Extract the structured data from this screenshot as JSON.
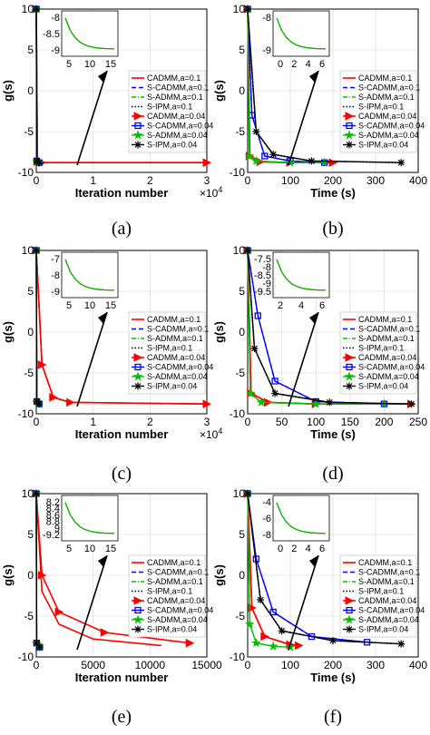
{
  "panels": [
    {
      "letter": "(a)",
      "ylabel": "g(s)",
      "xlabel": "Iteration number",
      "xmax": 3,
      "xticks": [
        "0",
        "1",
        "2",
        "3"
      ],
      "xexp": "×10",
      "xexp_pow": "4",
      "yticks": [
        "-10",
        "-5",
        "0",
        "5",
        "10"
      ],
      "inset": {
        "xticks": [
          "5",
          "10",
          "15"
        ],
        "yticks": [
          "-8",
          "-8.5",
          "-9"
        ]
      },
      "legend": [
        "CADMM,a=0.1",
        "S-CADMM,a=0.1",
        "S-ADMM,a=0.1",
        "S-IPM,a=0.1",
        "CADMM,a=0.04",
        "S-CADMM,a=0.04",
        "S-ADMM,a=0.04",
        "S-IPM,a=0.04"
      ]
    },
    {
      "letter": "(b)",
      "ylabel": "g(s)",
      "xlabel": "Time (s)",
      "xmax": 400,
      "xticks": [
        "0",
        "100",
        "200",
        "300",
        "400"
      ],
      "xexp": "",
      "xexp_pow": "",
      "yticks": [
        "-10",
        "-5",
        "0",
        "5",
        "10"
      ],
      "inset": {
        "xticks": [
          "0",
          "2",
          "4",
          "6"
        ],
        "yticks": [
          "-8",
          "-9"
        ]
      },
      "legend": [
        "CADMM,a=0.1",
        "S-CADMM,a=0.1",
        "S-ADMM,a=0.1",
        "S-IPM,a=0.1",
        "CADMM,a=0.04",
        "S-CADMM,a=0.04",
        "S-ADMM,a=0.04",
        "S-IPM,a=0.04"
      ]
    },
    {
      "letter": "(c)",
      "ylabel": "g(s)",
      "xlabel": "Iteration number",
      "xmax": 3,
      "xticks": [
        "0",
        "1",
        "2",
        "3"
      ],
      "xexp": "×10",
      "xexp_pow": "4",
      "yticks": [
        "-10",
        "-5",
        "0",
        "5",
        "10"
      ],
      "inset": {
        "xticks": [
          "5",
          "10",
          "15"
        ],
        "yticks": [
          "-7",
          "-8",
          "-9"
        ]
      },
      "legend": [
        "CADMM,a=0.1",
        "S-CADMM,a=0.1",
        "S-ADMM,a=0.1",
        "S-IPM,a=0.1",
        "CADMM,a=0.04",
        "S-CADMM,a=0.04",
        "S-ADMM,a=0.04",
        "S-IPM,a=0.04"
      ]
    },
    {
      "letter": "(d)",
      "ylabel": "g(s)",
      "xlabel": "Time (s)",
      "xmax": 250,
      "xticks": [
        "0",
        "50",
        "100",
        "150",
        "200",
        "250"
      ],
      "xexp": "",
      "xexp_pow": "",
      "yticks": [
        "-10",
        "-5",
        "0",
        "5",
        "10"
      ],
      "inset": {
        "xticks": [
          "2",
          "4",
          "6"
        ],
        "yticks": [
          "-7.5",
          "-8",
          "-8.5",
          "-9",
          "-9.5"
        ]
      },
      "legend": [
        "CADMM,a=0.1",
        "S-CADMM,a=0.1",
        "S-ADMM,a=0.1",
        "S-IPM,a=0.1",
        "CADMM,a=0.04",
        "S-CADMM,a=0.04",
        "S-ADMM,a=0.04",
        "S-IPM,a=0.04"
      ]
    },
    {
      "letter": "(e)",
      "ylabel": "g(s)",
      "xlabel": "Iteration number",
      "xmax": 15000,
      "xticks": [
        "0",
        "5000",
        "10000",
        "15000"
      ],
      "xexp": "",
      "xexp_pow": "",
      "yticks": [
        "-10",
        "-5",
        "0",
        "5",
        "10"
      ],
      "inset": {
        "xticks": [
          "5",
          "10",
          "15"
        ],
        "yticks": [
          "8.2",
          "8.4",
          "8.6",
          "8.8",
          "9",
          "-9.2"
        ]
      },
      "legend": [
        "CADMM,a=0.1",
        "S-CADMM,a=0.1",
        "S-ADMM,a=0.1",
        "S-IPM,a=0.1",
        "CADMM,a=0.04",
        "S-CADMM,a=0.04",
        "S-ADMM,a=0.04",
        "S-IPM,a=0.04"
      ]
    },
    {
      "letter": "(f)",
      "ylabel": "g(s)",
      "xlabel": "Time (s)",
      "xmax": 400,
      "xticks": [
        "0",
        "100",
        "200",
        "300",
        "400"
      ],
      "xexp": "",
      "xexp_pow": "",
      "yticks": [
        "-10",
        "-5",
        "0",
        "5",
        "10"
      ],
      "inset": {
        "xticks": [
          "0",
          "2",
          "4",
          "6"
        ],
        "yticks": [
          "-4",
          "-6",
          "-8"
        ]
      },
      "legend": [
        "CADMM,a=0.1",
        "S-CADMM,a=0.1",
        "S-ADMM,a=0.1",
        "S-IPM,a=0.1",
        "CADMM,a=0.04",
        "S-CADMM,a=0.04",
        "S-ADMM,a=0.04",
        "S-IPM,a=0.04"
      ]
    }
  ],
  "colors": {
    "cadmm": "#ff0000",
    "scadmm": "#0000ff",
    "sadmm": "#00c000",
    "sipm": "#000000"
  },
  "chart_data": [
    {
      "type": "line",
      "xlim": [
        0,
        3
      ],
      "ylim": [
        -10,
        10
      ],
      "series": [
        {
          "name": "CADMM,a=0.1",
          "x": [
            0,
            0.02,
            0.1,
            3
          ],
          "y": [
            10,
            -8.7,
            -8.8,
            -8.8
          ]
        },
        {
          "name": "S-CADMM,a=0.1",
          "x": [
            0,
            0.01,
            0.05
          ],
          "y": [
            10,
            -8.6,
            -8.8
          ]
        },
        {
          "name": "S-ADMM,a=0.1",
          "x": [
            0,
            0.01,
            0.05
          ],
          "y": [
            10,
            -8.6,
            -8.8
          ]
        },
        {
          "name": "S-IPM,a=0.1",
          "x": [
            0,
            0.01,
            0.05
          ],
          "y": [
            10,
            -8.6,
            -8.8
          ]
        },
        {
          "name": "CADMM,a=0.04",
          "x": [
            0,
            0.02,
            0.1,
            3
          ],
          "y": [
            10,
            -8.7,
            -8.8,
            -8.8
          ]
        },
        {
          "name": "S-CADMM,a=0.04",
          "x": [
            0,
            0.01,
            0.05
          ],
          "y": [
            10,
            -8.6,
            -8.8
          ]
        },
        {
          "name": "S-ADMM,a=0.04",
          "x": [
            0,
            0.01,
            0.05
          ],
          "y": [
            10,
            -8.6,
            -8.8
          ]
        },
        {
          "name": "S-IPM,a=0.04",
          "x": [
            0,
            0.01,
            0.05
          ],
          "y": [
            10,
            -8.6,
            -8.8
          ]
        }
      ]
    },
    {
      "type": "line",
      "xlim": [
        0,
        400
      ],
      "ylim": [
        -10,
        10
      ],
      "series": [
        {
          "name": "CADMM,a=0.1",
          "x": [
            0,
            5,
            30,
            100,
            200
          ],
          "y": [
            10,
            -8.0,
            -8.7,
            -8.8,
            -8.8
          ]
        },
        {
          "name": "S-CADMM,a=0.1",
          "x": [
            0,
            10,
            40,
            100,
            180
          ],
          "y": [
            10,
            -3,
            -8.0,
            -8.6,
            -8.8
          ]
        },
        {
          "name": "S-ADMM,a=0.1",
          "x": [
            0,
            4,
            20,
            100,
            180
          ],
          "y": [
            10,
            -8.0,
            -8.6,
            -8.8,
            -8.8
          ]
        },
        {
          "name": "S-IPM,a=0.1",
          "x": [
            0,
            20,
            60,
            150,
            360
          ],
          "y": [
            10,
            -5,
            -7.8,
            -8.6,
            -8.8
          ]
        },
        {
          "name": "CADMM,a=0.04",
          "x": [
            0,
            5,
            30,
            100,
            200
          ],
          "y": [
            10,
            -8.0,
            -8.7,
            -8.8,
            -8.8
          ]
        },
        {
          "name": "S-CADMM,a=0.04",
          "x": [
            0,
            10,
            40,
            100,
            180
          ],
          "y": [
            10,
            -3,
            -8.0,
            -8.6,
            -8.8
          ]
        },
        {
          "name": "S-ADMM,a=0.04",
          "x": [
            0,
            4,
            20,
            100,
            180
          ],
          "y": [
            10,
            -8.0,
            -8.6,
            -8.8,
            -8.8
          ]
        },
        {
          "name": "S-IPM,a=0.04",
          "x": [
            0,
            20,
            60,
            150,
            360
          ],
          "y": [
            10,
            -5,
            -7.8,
            -8.6,
            -8.8
          ]
        }
      ]
    },
    {
      "type": "line",
      "xlim": [
        0,
        3
      ],
      "ylim": [
        -10,
        10
      ],
      "series": [
        {
          "name": "CADMM,a=0.1",
          "x": [
            0,
            0.1,
            0.3,
            0.6,
            3
          ],
          "y": [
            10,
            -4,
            -8.0,
            -8.6,
            -8.8
          ]
        },
        {
          "name": "S-CADMM,a=0.1",
          "x": [
            0,
            0.01,
            0.05
          ],
          "y": [
            10,
            -8.5,
            -8.8
          ]
        },
        {
          "name": "S-ADMM,a=0.1",
          "x": [
            0,
            0.01,
            0.05
          ],
          "y": [
            10,
            -8.5,
            -8.8
          ]
        },
        {
          "name": "S-IPM,a=0.1",
          "x": [
            0,
            0.01,
            0.05
          ],
          "y": [
            10,
            -8.5,
            -8.8
          ]
        },
        {
          "name": "CADMM,a=0.04",
          "x": [
            0,
            0.1,
            0.3,
            0.6,
            3
          ],
          "y": [
            10,
            -4,
            -8.0,
            -8.6,
            -8.8
          ]
        },
        {
          "name": "S-CADMM,a=0.04",
          "x": [
            0,
            0.01,
            0.05
          ],
          "y": [
            10,
            -8.5,
            -8.8
          ]
        },
        {
          "name": "S-ADMM,a=0.04",
          "x": [
            0,
            0.01,
            0.05
          ],
          "y": [
            10,
            -8.5,
            -8.8
          ]
        },
        {
          "name": "S-IPM,a=0.04",
          "x": [
            0,
            0.01,
            0.05
          ],
          "y": [
            10,
            -8.5,
            -8.8
          ]
        }
      ]
    },
    {
      "type": "line",
      "xlim": [
        0,
        250
      ],
      "ylim": [
        -10,
        10
      ],
      "series": [
        {
          "name": "CADMM,a=0.1",
          "x": [
            0,
            5,
            30,
            100,
            240
          ],
          "y": [
            10,
            -7.5,
            -8.6,
            -8.8,
            -8.8
          ]
        },
        {
          "name": "S-CADMM,a=0.1",
          "x": [
            0,
            15,
            40,
            100,
            200
          ],
          "y": [
            10,
            2,
            -6,
            -8.5,
            -8.8
          ]
        },
        {
          "name": "S-ADMM,a=0.1",
          "x": [
            0,
            4,
            20,
            100,
            200
          ],
          "y": [
            10,
            -7.5,
            -8.6,
            -8.8,
            -8.8
          ]
        },
        {
          "name": "S-IPM,a=0.1",
          "x": [
            0,
            10,
            40,
            120,
            240
          ],
          "y": [
            10,
            -2,
            -7.5,
            -8.6,
            -8.8
          ]
        },
        {
          "name": "CADMM,a=0.04",
          "x": [
            0,
            5,
            30,
            100,
            240
          ],
          "y": [
            10,
            -7.5,
            -8.6,
            -8.8,
            -8.8
          ]
        },
        {
          "name": "S-CADMM,a=0.04",
          "x": [
            0,
            15,
            40,
            100,
            200
          ],
          "y": [
            10,
            2,
            -6,
            -8.5,
            -8.8
          ]
        },
        {
          "name": "S-ADMM,a=0.04",
          "x": [
            0,
            4,
            20,
            100,
            200
          ],
          "y": [
            10,
            -7.5,
            -8.6,
            -8.8,
            -8.8
          ]
        },
        {
          "name": "S-IPM,a=0.04",
          "x": [
            0,
            10,
            40,
            120,
            240
          ],
          "y": [
            10,
            -2,
            -7.5,
            -8.6,
            -8.8
          ]
        }
      ]
    },
    {
      "type": "line",
      "xlim": [
        0,
        15000
      ],
      "ylim": [
        -10,
        10
      ],
      "series": [
        {
          "name": "CADMM,a=0.1",
          "x": [
            0,
            500,
            2000,
            5000,
            11000
          ],
          "y": [
            10,
            -2,
            -6,
            -7.8,
            -8.6
          ]
        },
        {
          "name": "S-CADMM,a=0.1",
          "x": [
            0,
            30,
            300
          ],
          "y": [
            10,
            -8.3,
            -8.8
          ]
        },
        {
          "name": "S-ADMM,a=0.1",
          "x": [
            0,
            30,
            300
          ],
          "y": [
            10,
            -8.3,
            -8.8
          ]
        },
        {
          "name": "S-IPM,a=0.1",
          "x": [
            0,
            30,
            300
          ],
          "y": [
            10,
            -8.3,
            -8.8
          ]
        },
        {
          "name": "CADMM,a=0.04",
          "x": [
            0,
            500,
            2000,
            6000,
            13500
          ],
          "y": [
            10,
            0,
            -4.5,
            -7.0,
            -8.3
          ]
        },
        {
          "name": "S-CADMM,a=0.04",
          "x": [
            0,
            30,
            300
          ],
          "y": [
            10,
            -8.3,
            -8.8
          ]
        },
        {
          "name": "S-ADMM,a=0.04",
          "x": [
            0,
            30,
            300
          ],
          "y": [
            10,
            -8.3,
            -8.8
          ]
        },
        {
          "name": "S-IPM,a=0.04",
          "x": [
            0,
            30,
            300
          ],
          "y": [
            10,
            -8.3,
            -8.8
          ]
        }
      ]
    },
    {
      "type": "line",
      "xlim": [
        0,
        400
      ],
      "ylim": [
        -10,
        10
      ],
      "series": [
        {
          "name": "CADMM,a=0.1",
          "x": [
            0,
            10,
            40,
            100,
            120
          ],
          "y": [
            10,
            -4,
            -7.5,
            -8.5,
            -8.6
          ]
        },
        {
          "name": "S-CADMM,a=0.1",
          "x": [
            0,
            20,
            60,
            150,
            280
          ],
          "y": [
            10,
            2,
            -4.5,
            -7.5,
            -8.2
          ]
        },
        {
          "name": "S-ADMM,a=0.1",
          "x": [
            0,
            5,
            20,
            60,
            100
          ],
          "y": [
            10,
            -6,
            -8.3,
            -8.7,
            -8.8
          ]
        },
        {
          "name": "S-IPM,a=0.1",
          "x": [
            0,
            30,
            80,
            200,
            360
          ],
          "y": [
            10,
            -3,
            -6.8,
            -8.0,
            -8.4
          ]
        },
        {
          "name": "CADMM,a=0.04",
          "x": [
            0,
            10,
            40,
            100,
            120
          ],
          "y": [
            10,
            -4,
            -7.5,
            -8.5,
            -8.6
          ]
        },
        {
          "name": "S-CADMM,a=0.04",
          "x": [
            0,
            20,
            60,
            150,
            280
          ],
          "y": [
            10,
            2,
            -4.5,
            -7.5,
            -8.2
          ]
        },
        {
          "name": "S-ADMM,a=0.04",
          "x": [
            0,
            5,
            20,
            60,
            100
          ],
          "y": [
            10,
            -6,
            -8.3,
            -8.7,
            -8.8
          ]
        },
        {
          "name": "S-IPM,a=0.04",
          "x": [
            0,
            30,
            80,
            200,
            360
          ],
          "y": [
            10,
            -3,
            -6.8,
            -8.0,
            -8.4
          ]
        }
      ]
    }
  ]
}
